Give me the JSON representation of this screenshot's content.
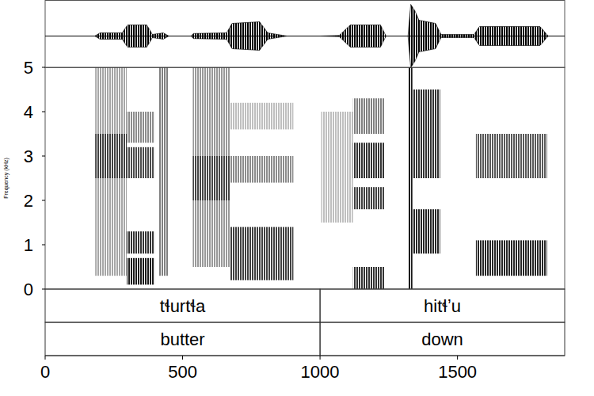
{
  "chart_data": {
    "type": "spectrogram",
    "y_label": "Frequency (kHz)",
    "xlim": [
      0,
      1890
    ],
    "xticks": [
      0,
      500,
      1000,
      1500
    ],
    "ylim": [
      0,
      5
    ],
    "yticks": [
      0,
      1,
      2,
      3,
      4,
      5
    ],
    "waveform": {
      "t": [
        0,
        180,
        200,
        280,
        300,
        370,
        390,
        430,
        450,
        530,
        540,
        660,
        680,
        780,
        810,
        880,
        1000,
        1070,
        1110,
        1220,
        1240,
        1320,
        1330,
        1345,
        1360,
        1420,
        1440,
        1560,
        1580,
        1800,
        1830,
        1890
      ],
      "amplitude": [
        0,
        0,
        0.1,
        0.1,
        0.35,
        0.35,
        0.05,
        0.1,
        0,
        0,
        0.08,
        0.1,
        0.4,
        0.45,
        0.1,
        0,
        0,
        0.02,
        0.35,
        0.35,
        0,
        0,
        1,
        0.8,
        0.5,
        0.4,
        0.05,
        0.05,
        0.3,
        0.3,
        0,
        0
      ]
    },
    "cells": [
      {
        "t0": 182,
        "t1": 297,
        "f0": 0.3,
        "f1": 5,
        "intensity": 0.35
      },
      {
        "t0": 182,
        "t1": 297,
        "f0": 2.5,
        "f1": 3.5,
        "intensity": 0.6
      },
      {
        "t0": 297,
        "t1": 398,
        "f0": 0.1,
        "f1": 0.7,
        "intensity": 0.9
      },
      {
        "t0": 297,
        "t1": 398,
        "f0": 0.8,
        "f1": 1.3,
        "intensity": 0.8
      },
      {
        "t0": 297,
        "t1": 398,
        "f0": 2.5,
        "f1": 3.2,
        "intensity": 0.7
      },
      {
        "t0": 297,
        "t1": 398,
        "f0": 3.3,
        "f1": 4.0,
        "intensity": 0.45
      },
      {
        "t0": 412,
        "t1": 447,
        "f0": 0.3,
        "f1": 5,
        "intensity": 0.5
      },
      {
        "t0": 537,
        "t1": 672,
        "f0": 0.5,
        "f1": 5,
        "intensity": 0.4
      },
      {
        "t0": 537,
        "t1": 672,
        "f0": 2.0,
        "f1": 3.0,
        "intensity": 0.55
      },
      {
        "t0": 672,
        "t1": 903,
        "f0": 0.2,
        "f1": 1.4,
        "intensity": 0.75
      },
      {
        "t0": 672,
        "t1": 903,
        "f0": 2.4,
        "f1": 3.0,
        "intensity": 0.45
      },
      {
        "t0": 672,
        "t1": 903,
        "f0": 3.6,
        "f1": 4.2,
        "intensity": 0.25
      },
      {
        "t0": 1004,
        "t1": 1120,
        "f0": 1.5,
        "f1": 4.0,
        "intensity": 0.25
      },
      {
        "t0": 1120,
        "t1": 1235,
        "f0": 0.0,
        "f1": 0.5,
        "intensity": 0.8
      },
      {
        "t0": 1120,
        "t1": 1235,
        "f0": 1.8,
        "f1": 2.3,
        "intensity": 0.75
      },
      {
        "t0": 1120,
        "t1": 1235,
        "f0": 2.5,
        "f1": 3.3,
        "intensity": 0.8
      },
      {
        "t0": 1120,
        "t1": 1235,
        "f0": 3.5,
        "f1": 4.3,
        "intensity": 0.5
      },
      {
        "t0": 1321,
        "t1": 1336,
        "f0": 0.0,
        "f1": 5,
        "intensity": 0.9
      },
      {
        "t0": 1336,
        "t1": 1437,
        "f0": 0.8,
        "f1": 1.8,
        "intensity": 0.85
      },
      {
        "t0": 1336,
        "t1": 1437,
        "f0": 2.5,
        "f1": 4.5,
        "intensity": 0.8
      },
      {
        "t0": 1567,
        "t1": 1826,
        "f0": 0.3,
        "f1": 1.1,
        "intensity": 0.85
      },
      {
        "t0": 1567,
        "t1": 1826,
        "f0": 2.5,
        "f1": 3.5,
        "intensity": 0.65
      }
    ],
    "tiers": [
      {
        "intervals": [
          {
            "start": 0,
            "end": 1000,
            "text": "tɬurtɬa"
          },
          {
            "start": 1000,
            "end": 1890,
            "text": "hitɬʼu"
          }
        ]
      },
      {
        "intervals": [
          {
            "start": 0,
            "end": 1000,
            "text": "butter"
          },
          {
            "start": 1000,
            "end": 1890,
            "text": "down"
          }
        ]
      }
    ]
  }
}
